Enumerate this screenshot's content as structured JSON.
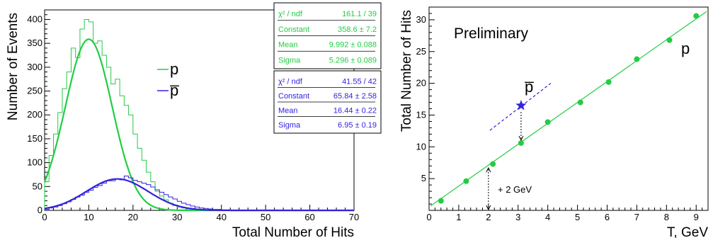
{
  "colors": {
    "proton": "#22cc44",
    "antiproton": "#3322dd",
    "axis": "#000000"
  },
  "chart_data": [
    {
      "type": "histogram",
      "xlabel": "Total Number of Hits",
      "ylabel": "Number of Events",
      "xlim": [
        0,
        70
      ],
      "ylim": [
        0,
        420
      ],
      "x_ticks": [
        "0",
        "10",
        "20",
        "30",
        "40",
        "50",
        "60",
        "70"
      ],
      "y_ticks": [
        "0",
        "50",
        "100",
        "150",
        "200",
        "250",
        "300",
        "350",
        "400"
      ],
      "legend": {
        "placement": "center-right",
        "entries": [
          {
            "label": "p",
            "series": "p"
          },
          {
            "label": "p̅",
            "series": "pbar"
          }
        ]
      },
      "series": [
        {
          "key": "p",
          "color": "#22cc44",
          "bin_width": 1,
          "bin_start": 0,
          "counts": [
            60,
            115,
            160,
            205,
            255,
            290,
            340,
            320,
            380,
            400,
            395,
            350,
            355,
            325,
            300,
            265,
            275,
            240,
            220,
            200,
            160,
            130,
            105,
            80,
            60,
            40,
            30,
            22,
            15,
            10,
            7,
            5,
            3,
            2,
            1
          ],
          "fit": {
            "type": "gaussian",
            "constant": 358.6,
            "mean": 9.992,
            "sigma": 5.296
          }
        },
        {
          "key": "pbar",
          "color": "#3322dd",
          "bin_width": 1,
          "bin_start": 0,
          "counts": [
            2,
            5,
            7,
            10,
            14,
            18,
            23,
            28,
            32,
            38,
            42,
            48,
            52,
            57,
            62,
            62,
            66,
            64,
            72,
            68,
            63,
            60,
            57,
            54,
            49,
            43,
            38,
            33,
            28,
            24,
            19,
            15,
            12,
            9,
            7,
            5,
            4,
            3,
            2,
            2,
            1,
            1
          ],
          "fit": {
            "type": "gaussian",
            "constant": 65.84,
            "mean": 16.44,
            "sigma": 6.95
          }
        }
      ],
      "stat_boxes": [
        {
          "series": "p",
          "rows": [
            {
              "label": "χ² / ndf",
              "value": "161.1 / 39"
            },
            {
              "label": "Constant",
              "value": "358.6 ± 7.2"
            },
            {
              "label": "Mean",
              "value": "9.992 ± 0.088"
            },
            {
              "label": "Sigma",
              "value": "5.296 ± 0.089"
            }
          ]
        },
        {
          "series": "pbar",
          "rows": [
            {
              "label": "χ² / ndf",
              "value": "41.55 / 42"
            },
            {
              "label": "Constant",
              "value": "65.84 ± 2.58"
            },
            {
              "label": "Mean",
              "value": "16.44 ± 0.22"
            },
            {
              "label": "Sigma",
              "value": "6.95 ± 0.19"
            }
          ]
        }
      ]
    },
    {
      "type": "scatter",
      "xlabel": "T, GeV",
      "ylabel": "Total Number of Hits",
      "xlim": [
        0,
        9.4
      ],
      "ylim": [
        0,
        32
      ],
      "x_ticks": [
        "0",
        "1",
        "2",
        "3",
        "4",
        "5",
        "6",
        "7",
        "8",
        "9"
      ],
      "y_ticks": [
        "5",
        "10",
        "15",
        "20",
        "25",
        "30"
      ],
      "annotation_text": "Preliminary",
      "shift_label": "+ 2 GeV",
      "series": [
        {
          "key": "p",
          "label": "p",
          "color": "#22cc44",
          "points": [
            {
              "x": 0.4,
              "y": 1.5
            },
            {
              "x": 1.25,
              "y": 4.6
            },
            {
              "x": 2.15,
              "y": 7.3
            },
            {
              "x": 3.1,
              "y": 10.6
            },
            {
              "x": 4.0,
              "y": 13.9
            },
            {
              "x": 5.1,
              "y": 17.0
            },
            {
              "x": 6.05,
              "y": 20.2
            },
            {
              "x": 7.0,
              "y": 23.8
            },
            {
              "x": 8.1,
              "y": 26.8
            },
            {
              "x": 9.0,
              "y": 30.6
            }
          ],
          "fit_line": {
            "x": [
              0.05,
              9.35
            ],
            "y": [
              0.7,
              31.3
            ]
          }
        },
        {
          "key": "pbar",
          "label": "p̅",
          "color": "#3322dd",
          "points": [
            {
              "x": 3.1,
              "y": 16.5
            }
          ],
          "fit_line": {
            "x": [
              2.05,
              4.1
            ],
            "y": [
              12.6,
              20.0
            ]
          }
        }
      ]
    }
  ]
}
